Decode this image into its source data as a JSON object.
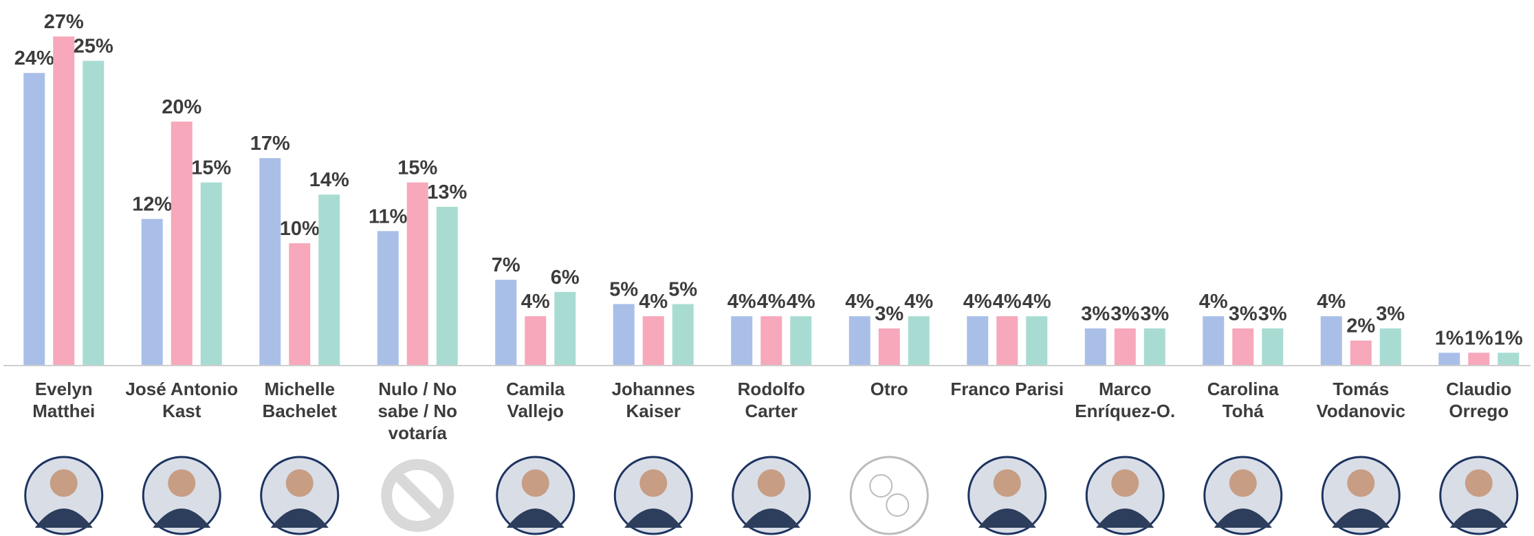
{
  "chart_data": {
    "type": "bar",
    "categories": [
      "Evelyn Matthei",
      "José Antonio Kast",
      "Michelle Bachelet",
      "Nulo / No sabe / No votaría",
      "Camila Vallejo",
      "Johannes Kaiser",
      "Rodolfo Carter",
      "Otro",
      "Franco Parisi",
      "Marco Enríquez-O.",
      "Carolina Tohá",
      "Tomás Vodanovic",
      "Claudio Orrego"
    ],
    "series": [
      {
        "color": "#a9bfe8",
        "values": [
          24,
          12,
          17,
          11,
          7,
          5,
          4,
          4,
          4,
          3,
          4,
          4,
          1
        ],
        "value_labels": [
          "24%",
          "12%",
          "17%",
          "11%",
          "7%",
          "5%",
          "4%",
          "4%",
          "4%",
          "3%",
          "4%",
          "4%",
          "1%"
        ]
      },
      {
        "color": "#f7a8bb",
        "values": [
          27,
          20,
          10,
          15,
          4,
          4,
          4,
          3,
          4,
          3,
          3,
          2,
          1
        ],
        "value_labels": [
          "27%",
          "20%",
          "10%",
          "15%",
          "4%",
          "4%",
          "4%",
          "3%",
          "4%",
          "3%",
          "3%",
          "2%",
          "1%"
        ]
      },
      {
        "color": "#a8dcd3",
        "values": [
          25,
          15,
          14,
          13,
          6,
          5,
          4,
          4,
          4,
          3,
          3,
          3,
          1
        ],
        "value_labels": [
          "25%",
          "15%",
          "14%",
          "13%",
          "6%",
          "5%",
          "4%",
          "4%",
          "4%",
          "3%",
          "3%",
          "3%",
          "1%"
        ]
      }
    ],
    "ylim": [
      0,
      30
    ]
  }
}
